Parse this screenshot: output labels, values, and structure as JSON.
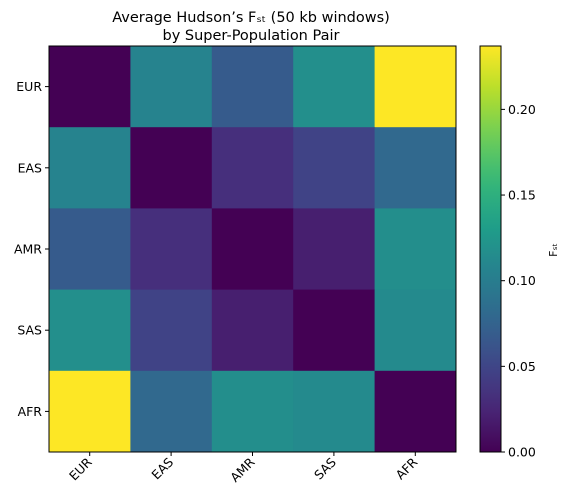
{
  "chart_data": {
    "type": "heatmap",
    "title_line1": "Average Hudson’s Fₛₜ (50 kb windows)",
    "title_line2": "by Super-Population Pair",
    "x_categories": [
      "EUR",
      "EAS",
      "AMR",
      "SAS",
      "AFR"
    ],
    "y_categories": [
      "EUR",
      "EAS",
      "AMR",
      "SAS",
      "AFR"
    ],
    "values": [
      [
        0.0,
        0.106,
        0.068,
        0.118,
        0.237
      ],
      [
        0.106,
        0.0,
        0.032,
        0.048,
        0.08
      ],
      [
        0.068,
        0.032,
        0.0,
        0.02,
        0.117
      ],
      [
        0.118,
        0.048,
        0.02,
        0.0,
        0.113
      ],
      [
        0.237,
        0.08,
        0.117,
        0.113,
        0.0
      ]
    ],
    "colormap": "viridis",
    "vmin": 0.0,
    "vmax": 0.237,
    "colorbar_label": "Fₛₜ",
    "colorbar_ticks": [
      0.0,
      0.05,
      0.1,
      0.15,
      0.2
    ],
    "colorbar_tick_labels": [
      "0.00",
      "0.05",
      "0.10",
      "0.15",
      "0.20"
    ]
  }
}
